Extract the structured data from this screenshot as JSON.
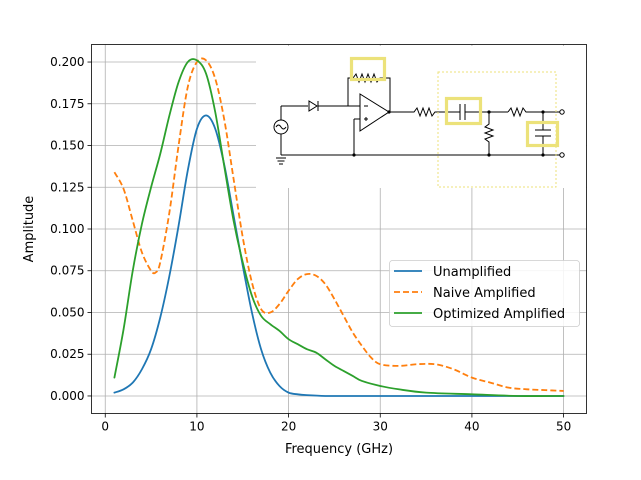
{
  "chart_data": {
    "type": "line",
    "title": "",
    "xlabel": "Frequency (GHz)",
    "ylabel": "Amplitude",
    "xlim": [
      -1.5,
      52.5
    ],
    "ylim": [
      -0.0105,
      0.2105
    ],
    "xticks": [
      0,
      10,
      20,
      30,
      40,
      50
    ],
    "xtick_labels": [
      "0",
      "10",
      "20",
      "30",
      "40",
      "50"
    ],
    "yticks": [
      0.0,
      0.025,
      0.05,
      0.075,
      0.1,
      0.125,
      0.15,
      0.175,
      0.2
    ],
    "ytick_labels": [
      "0.000",
      "0.025",
      "0.050",
      "0.075",
      "0.100",
      "0.125",
      "0.150",
      "0.175",
      "0.200"
    ],
    "grid": true,
    "legend_position": "center-right",
    "series": [
      {
        "name": "Unamplified",
        "color": "#1f77b4",
        "style": "solid",
        "x": [
          1,
          2,
          3,
          4,
          5,
          6,
          7,
          8,
          9,
          10,
          11,
          12,
          13,
          14,
          15,
          16,
          17,
          18,
          19,
          20,
          21,
          22,
          24,
          26,
          30,
          35,
          40,
          45,
          50
        ],
        "y": [
          0.002,
          0.004,
          0.008,
          0.016,
          0.028,
          0.047,
          0.072,
          0.102,
          0.135,
          0.16,
          0.168,
          0.16,
          0.138,
          0.108,
          0.078,
          0.05,
          0.028,
          0.014,
          0.006,
          0.002,
          0.001,
          0.0005,
          0.0,
          0.0,
          0.0,
          0.0,
          0.0,
          0.0,
          0.0
        ]
      },
      {
        "name": "Naive Amplified",
        "color": "#ff7f0e",
        "style": "dashed",
        "x": [
          1,
          2,
          3,
          4,
          5,
          5.5,
          6,
          7,
          8,
          9,
          10,
          11,
          12,
          13,
          14,
          15,
          16,
          17,
          18,
          19,
          20,
          21,
          22,
          23,
          24,
          25,
          26,
          27,
          28,
          29,
          30,
          32,
          34,
          36,
          38,
          40,
          42,
          44,
          46,
          48,
          50
        ],
        "y": [
          0.134,
          0.124,
          0.105,
          0.086,
          0.075,
          0.074,
          0.08,
          0.11,
          0.15,
          0.185,
          0.2,
          0.201,
          0.19,
          0.165,
          0.13,
          0.095,
          0.068,
          0.052,
          0.05,
          0.055,
          0.063,
          0.07,
          0.073,
          0.072,
          0.067,
          0.058,
          0.048,
          0.038,
          0.03,
          0.023,
          0.019,
          0.018,
          0.019,
          0.019,
          0.016,
          0.011,
          0.008,
          0.005,
          0.004,
          0.0035,
          0.003
        ]
      },
      {
        "name": "Optimized Amplified",
        "color": "#2ca02c",
        "style": "solid",
        "x": [
          1,
          2,
          3,
          4,
          5,
          6,
          7,
          8,
          9,
          10,
          11,
          12,
          13,
          14,
          15,
          16,
          17,
          18,
          19,
          20,
          21,
          22,
          23,
          24,
          25,
          26,
          27,
          28,
          30,
          32,
          35,
          40,
          45,
          50
        ],
        "y": [
          0.011,
          0.04,
          0.075,
          0.103,
          0.125,
          0.145,
          0.168,
          0.188,
          0.2,
          0.201,
          0.193,
          0.17,
          0.137,
          0.105,
          0.08,
          0.06,
          0.048,
          0.043,
          0.039,
          0.034,
          0.031,
          0.028,
          0.026,
          0.022,
          0.018,
          0.015,
          0.012,
          0.009,
          0.006,
          0.004,
          0.002,
          0.001,
          0.0,
          0.0
        ]
      }
    ],
    "annotations": [
      "inset circuit diagram (top-right)"
    ]
  }
}
